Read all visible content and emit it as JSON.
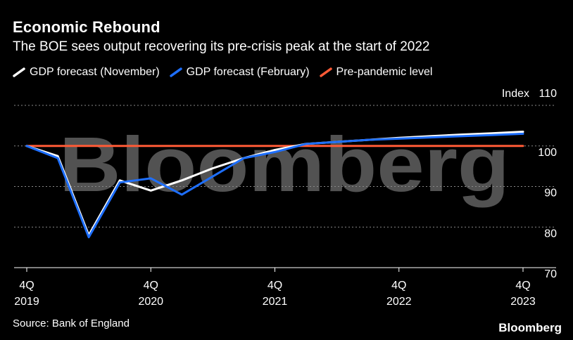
{
  "header": {
    "title": "Economic Rebound",
    "subtitle": "The BOE sees output recovering its pre-crisis peak at the start of 2022"
  },
  "footer": {
    "source": "Source: Bank of England",
    "brand": "Bloomberg"
  },
  "watermark": "Bloomberg",
  "chart_data": {
    "type": "line",
    "y_unit_label": "Index",
    "ylim": [
      70,
      110
    ],
    "yticks": [
      70,
      80,
      90,
      100,
      110
    ],
    "grid": true,
    "legend_position": "top-left",
    "x_ticks": [
      {
        "top": "4Q",
        "bottom": "2019"
      },
      {
        "top": "4Q",
        "bottom": "2020"
      },
      {
        "top": "4Q",
        "bottom": "2021"
      },
      {
        "top": "4Q",
        "bottom": "2022"
      },
      {
        "top": "4Q",
        "bottom": "2023"
      }
    ],
    "x": [
      "4Q 2019",
      "1Q 2020",
      "2Q 2020",
      "3Q 2020",
      "4Q 2020",
      "1Q 2021",
      "2Q 2021",
      "3Q 2021",
      "4Q 2021",
      "1Q 2022",
      "2Q 2022",
      "3Q 2022",
      "4Q 2022",
      "1Q 2023",
      "2Q 2023",
      "3Q 2023",
      "4Q 2023"
    ],
    "series": [
      {
        "name": "GDP forecast (November)",
        "color": "#ffffff",
        "values": [
          100,
          97.5,
          78,
          91.5,
          89,
          91.5,
          94.5,
          97,
          99,
          100.5,
          101,
          101.5,
          102,
          102.4,
          102.8,
          103.1,
          103.5
        ]
      },
      {
        "name": "GDP forecast (February)",
        "color": "#1e6fff",
        "values": [
          100,
          97,
          77.5,
          91,
          92,
          88,
          92.5,
          97,
          98.5,
          100.5,
          101,
          101.5,
          101.8,
          102.1,
          102.4,
          102.7,
          103
        ]
      },
      {
        "name": "Pre-pandemic level",
        "color": "#ff5a36",
        "values": [
          100,
          100,
          100,
          100,
          100,
          100,
          100,
          100,
          100,
          100,
          100,
          100,
          100,
          100,
          100,
          100,
          100
        ]
      }
    ]
  }
}
